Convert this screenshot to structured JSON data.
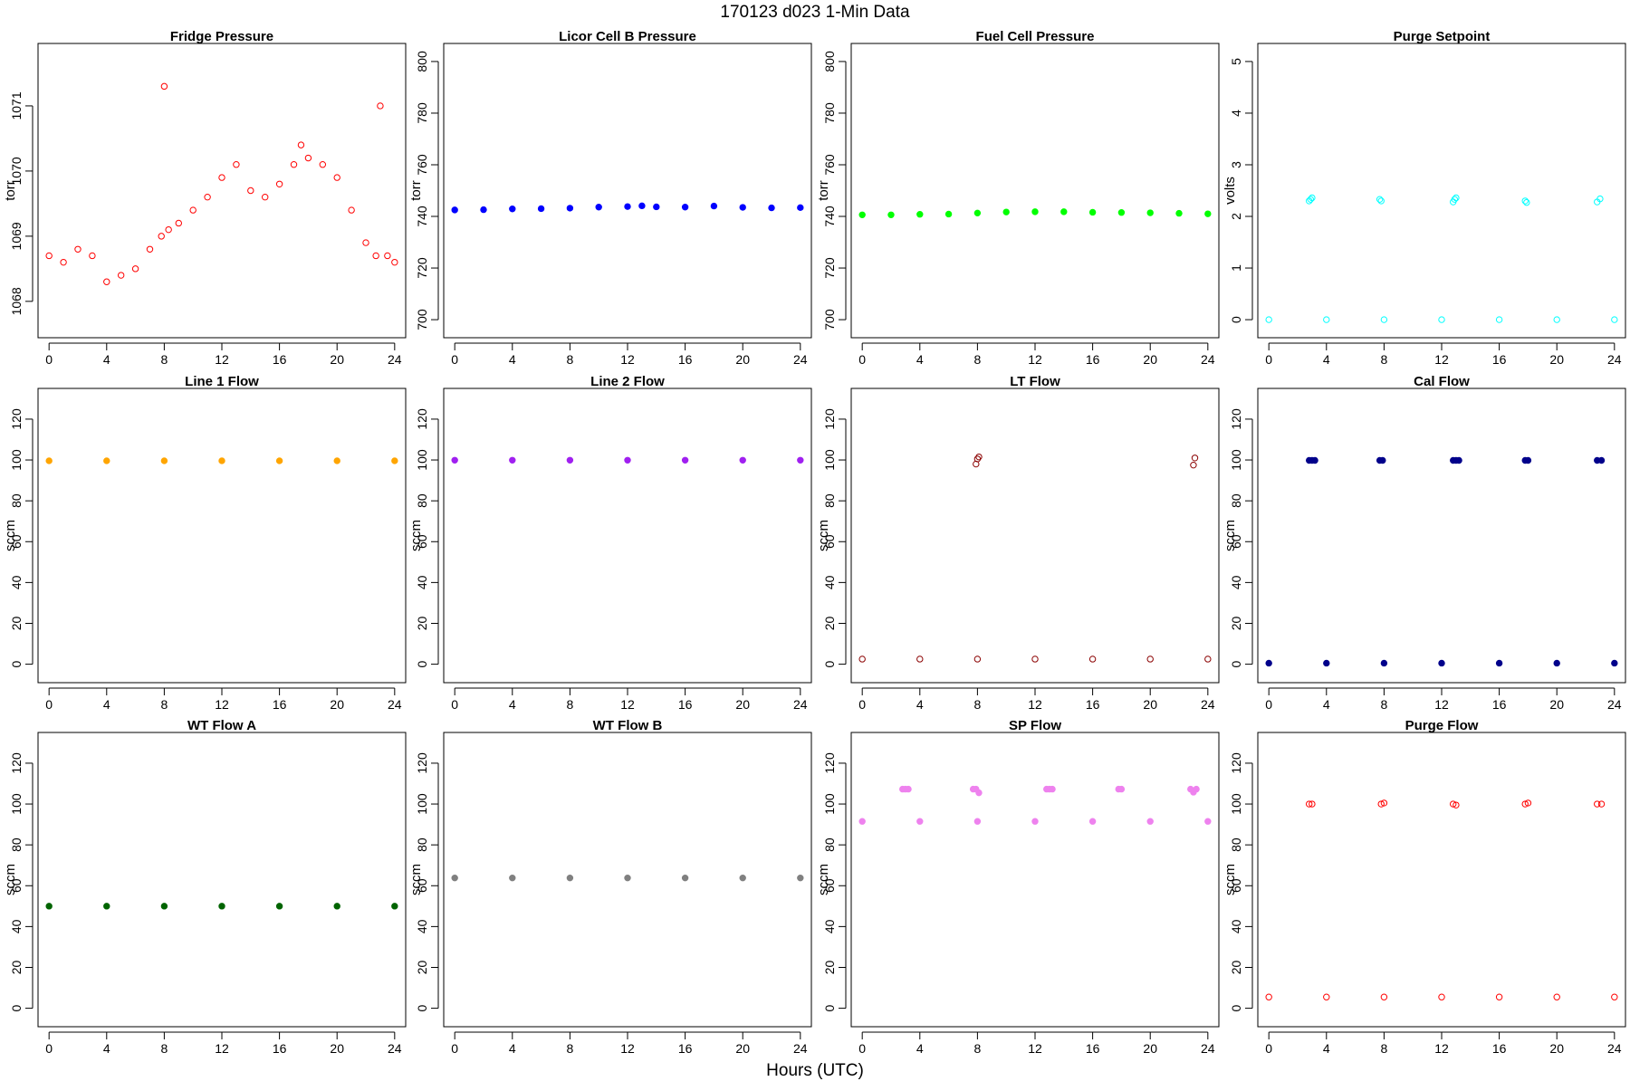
{
  "page_title": "170123    d023    1-Min Data",
  "xlabel": "Hours (UTC)",
  "chart_data": [
    {
      "type": "scatter",
      "title": "Fridge Pressure",
      "ylabel": "torr",
      "xlim": [
        0,
        24
      ],
      "ylim": [
        1067.6,
        1071.8
      ],
      "yticks": [
        1068,
        1069,
        1070,
        1071
      ],
      "xticks": [
        0,
        4,
        8,
        12,
        16,
        20,
        24
      ],
      "color": "#ff0000",
      "marker": "open",
      "series": [
        {
          "x": [
            0,
            1,
            2,
            3,
            4,
            5,
            6,
            7,
            7.8,
            8,
            8.3,
            9,
            10,
            11,
            12,
            13,
            14,
            15,
            16,
            17,
            17.5,
            18,
            19,
            20,
            21,
            22,
            22.7,
            23,
            23.5,
            24
          ],
          "y": [
            1068.7,
            1068.6,
            1068.8,
            1068.7,
            1068.3,
            1068.4,
            1068.5,
            1068.8,
            1069.0,
            1071.3,
            1069.1,
            1069.2,
            1069.4,
            1069.6,
            1069.9,
            1070.1,
            1069.7,
            1069.6,
            1069.8,
            1070.1,
            1070.4,
            1070.2,
            1070.1,
            1069.9,
            1069.4,
            1068.9,
            1068.7,
            1071.0,
            1068.7,
            1068.6
          ]
        }
      ]
    },
    {
      "type": "scatter",
      "title": "Licor Cell B Pressure",
      "ylabel": "torr",
      "xlim": [
        0,
        24
      ],
      "ylim": [
        697,
        803
      ],
      "yticks": [
        700,
        720,
        740,
        760,
        780,
        800
      ],
      "xticks": [
        0,
        4,
        8,
        12,
        16,
        20,
        24
      ],
      "color": "#0000ff",
      "marker": "filled",
      "series": [
        {
          "x": [
            0,
            2,
            4,
            6,
            8,
            10,
            12,
            13,
            14,
            16,
            18,
            20,
            22,
            24
          ],
          "y": [
            742.5,
            742.6,
            742.9,
            743.0,
            743.2,
            743.6,
            743.8,
            744.1,
            743.7,
            743.6,
            744.0,
            743.5,
            743.3,
            743.4
          ]
        }
      ]
    },
    {
      "type": "scatter",
      "title": "Fuel Cell Pressure",
      "ylabel": "torr",
      "xlim": [
        0,
        24
      ],
      "ylim": [
        697,
        803
      ],
      "yticks": [
        700,
        720,
        740,
        760,
        780,
        800
      ],
      "xticks": [
        0,
        4,
        8,
        12,
        16,
        20,
        24
      ],
      "color": "#00ff00",
      "marker": "filled",
      "series": [
        {
          "x": [
            0,
            2,
            4,
            6,
            8,
            10,
            12,
            14,
            16,
            18,
            20,
            22,
            24
          ],
          "y": [
            740.6,
            740.6,
            740.8,
            740.9,
            741.3,
            741.7,
            741.8,
            741.8,
            741.6,
            741.5,
            741.4,
            741.2,
            741.0
          ]
        }
      ]
    },
    {
      "type": "scatter",
      "title": "Purge Setpoint",
      "ylabel": "volts",
      "xlim": [
        0,
        24
      ],
      "ylim": [
        -0.15,
        5.15
      ],
      "yticks": [
        0,
        1,
        2,
        3,
        4,
        5
      ],
      "xticks": [
        0,
        4,
        8,
        12,
        16,
        20,
        24
      ],
      "color": "#00ffff",
      "marker": "open",
      "series": [
        {
          "x": [
            0,
            4,
            8,
            12,
            16,
            20,
            24
          ],
          "y": [
            0,
            0,
            0,
            0,
            0,
            0,
            0
          ]
        },
        {
          "x": [
            2.8,
            2.9,
            3.0,
            7.7,
            7.8,
            12.8,
            12.9,
            13.0,
            17.8,
            17.9,
            22.8,
            23.0
          ],
          "y": [
            2.3,
            2.33,
            2.36,
            2.33,
            2.3,
            2.28,
            2.33,
            2.36,
            2.3,
            2.27,
            2.28,
            2.34
          ]
        }
      ]
    },
    {
      "type": "scatter",
      "title": "Line 1 Flow",
      "ylabel": "sccm",
      "xlim": [
        0,
        24
      ],
      "ylim": [
        -4,
        130
      ],
      "yticks": [
        0,
        20,
        40,
        60,
        80,
        100,
        120
      ],
      "xticks": [
        0,
        4,
        8,
        12,
        16,
        20,
        24
      ],
      "color": "#ffa500",
      "marker": "filled",
      "series": [
        {
          "x": [
            0,
            4,
            8,
            12,
            16,
            20,
            24
          ],
          "y": [
            99.6,
            99.6,
            99.6,
            99.6,
            99.6,
            99.6,
            99.6
          ]
        }
      ]
    },
    {
      "type": "scatter",
      "title": "Line 2 Flow",
      "ylabel": "sccm",
      "xlim": [
        0,
        24
      ],
      "ylim": [
        -4,
        130
      ],
      "yticks": [
        0,
        20,
        40,
        60,
        80,
        100,
        120
      ],
      "xticks": [
        0,
        4,
        8,
        12,
        16,
        20,
        24
      ],
      "color": "#a020f0",
      "marker": "filled",
      "series": [
        {
          "x": [
            0,
            4,
            8,
            12,
            16,
            20,
            24
          ],
          "y": [
            99.9,
            99.9,
            99.9,
            99.9,
            99.9,
            99.9,
            99.9
          ]
        }
      ]
    },
    {
      "type": "scatter",
      "title": "LT Flow",
      "ylabel": "sccm",
      "xlim": [
        0,
        24
      ],
      "ylim": [
        -4,
        130
      ],
      "yticks": [
        0,
        20,
        40,
        60,
        80,
        100,
        120
      ],
      "xticks": [
        0,
        4,
        8,
        12,
        16,
        20,
        24
      ],
      "color": "#8b0000",
      "marker": "open",
      "series": [
        {
          "x": [
            0,
            4,
            8,
            12,
            16,
            20,
            24
          ],
          "y": [
            2.5,
            2.5,
            2.5,
            2.5,
            2.5,
            2.5,
            2.5
          ]
        },
        {
          "x": [
            7.9,
            8.0,
            8.1,
            23.0,
            23.1
          ],
          "y": [
            98,
            100.5,
            101.5,
            97.5,
            101
          ]
        }
      ]
    },
    {
      "type": "scatter",
      "title": "Cal Flow",
      "ylabel": "sccm",
      "xlim": [
        0,
        24
      ],
      "ylim": [
        -4,
        130
      ],
      "yticks": [
        0,
        20,
        40,
        60,
        80,
        100,
        120
      ],
      "xticks": [
        0,
        4,
        8,
        12,
        16,
        20,
        24
      ],
      "color": "#00008b",
      "marker": "filled",
      "series": [
        {
          "x": [
            0,
            4,
            8,
            12,
            16,
            20,
            24
          ],
          "y": [
            0.5,
            0.5,
            0.5,
            0.5,
            0.5,
            0.5,
            0.5
          ]
        },
        {
          "x": [
            2.8,
            3.0,
            3.2,
            7.7,
            7.9,
            12.8,
            13.0,
            13.2,
            17.8,
            18.0,
            22.8,
            23.1
          ],
          "y": [
            99.8,
            99.8,
            99.8,
            99.8,
            99.8,
            99.8,
            99.8,
            99.8,
            99.8,
            99.8,
            99.8,
            99.8
          ]
        }
      ]
    },
    {
      "type": "scatter",
      "title": "WT Flow A",
      "ylabel": "sccm",
      "xlim": [
        0,
        24
      ],
      "ylim": [
        -4,
        130
      ],
      "yticks": [
        0,
        20,
        40,
        60,
        80,
        100,
        120
      ],
      "xticks": [
        0,
        4,
        8,
        12,
        16,
        20,
        24
      ],
      "color": "#006400",
      "marker": "filled",
      "series": [
        {
          "x": [
            0,
            4,
            8,
            12,
            16,
            20,
            24
          ],
          "y": [
            50,
            50,
            50,
            50,
            50,
            50,
            50
          ]
        }
      ]
    },
    {
      "type": "scatter",
      "title": "WT Flow B",
      "ylabel": "sccm",
      "xlim": [
        0,
        24
      ],
      "ylim": [
        -4,
        130
      ],
      "yticks": [
        0,
        20,
        40,
        60,
        80,
        100,
        120
      ],
      "xticks": [
        0,
        4,
        8,
        12,
        16,
        20,
        24
      ],
      "color": "#808080",
      "marker": "filled",
      "series": [
        {
          "x": [
            0,
            4,
            8,
            12,
            16,
            20,
            24
          ],
          "y": [
            63.8,
            63.8,
            63.8,
            63.8,
            63.8,
            63.8,
            63.8
          ]
        }
      ]
    },
    {
      "type": "scatter",
      "title": "SP Flow",
      "ylabel": "sccm",
      "xlim": [
        0,
        24
      ],
      "ylim": [
        -4,
        130
      ],
      "yticks": [
        0,
        20,
        40,
        60,
        80,
        100,
        120
      ],
      "xticks": [
        0,
        4,
        8,
        12,
        16,
        20,
        24
      ],
      "color": "#ee82ee",
      "marker": "filled",
      "series": [
        {
          "x": [
            0,
            4,
            8,
            12,
            16,
            20,
            24
          ],
          "y": [
            91.5,
            91.5,
            91.5,
            91.5,
            91.5,
            91.5,
            91.5
          ]
        },
        {
          "x": [
            2.8,
            3.0,
            3.2,
            7.7,
            7.9,
            8.1,
            12.8,
            13.0,
            13.2,
            17.8,
            18.0,
            22.8,
            23.0,
            23.2
          ],
          "y": [
            107.3,
            107.3,
            107.3,
            107.3,
            107.3,
            105.5,
            107.3,
            107.3,
            107.3,
            107.3,
            107.3,
            107.3,
            105.8,
            107.3
          ]
        }
      ]
    },
    {
      "type": "scatter",
      "title": "Purge Flow",
      "ylabel": "sccm",
      "xlim": [
        0,
        24
      ],
      "ylim": [
        -4,
        130
      ],
      "yticks": [
        0,
        20,
        40,
        60,
        80,
        100,
        120
      ],
      "xticks": [
        0,
        4,
        8,
        12,
        16,
        20,
        24
      ],
      "color": "#ff0000",
      "marker": "open",
      "series": [
        {
          "x": [
            0,
            4,
            8,
            12,
            16,
            20,
            24
          ],
          "y": [
            5.5,
            5.5,
            5.5,
            5.5,
            5.5,
            5.5,
            5.5
          ]
        },
        {
          "x": [
            2.8,
            3.0,
            7.8,
            8.0,
            12.8,
            13.0,
            17.8,
            18.0,
            22.8,
            23.1
          ],
          "y": [
            100,
            100,
            100,
            100.5,
            100,
            99.5,
            100,
            100.5,
            100,
            100
          ]
        }
      ]
    }
  ]
}
